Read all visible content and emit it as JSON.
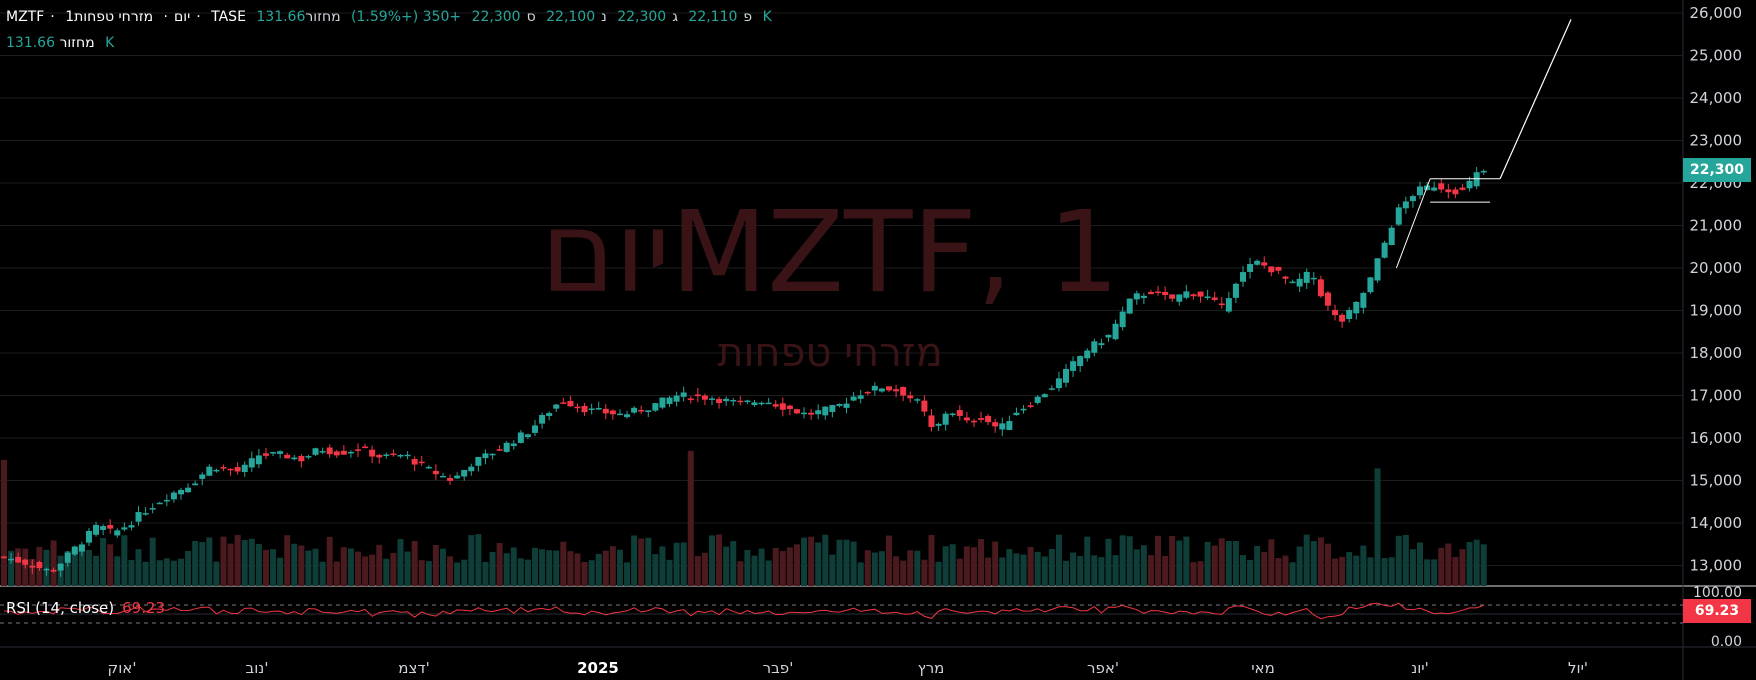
{
  "header": {
    "symbol": "MZTF",
    "interval": "1יום",
    "name": "מזרחי טפחות",
    "exchange": "TASE",
    "open_label": "פ",
    "open": "22,110",
    "high_label": "ג",
    "high": "22,300",
    "low_label": "נ",
    "low": "22,100",
    "close_label": "ס",
    "close": "22,300",
    "change": "+350 (+1.59%)",
    "volume_label": "מחזור",
    "volume": "131.66 K"
  },
  "volume_legend": {
    "label": "מחזור",
    "value": "131.66 K"
  },
  "watermark": {
    "title": "MZTF, 1יום",
    "subtitle": "מזרחי טפחות"
  },
  "rsi": {
    "label": "RSI (14, close)",
    "value": "69.23",
    "axis_top": "100.00",
    "axis_bottom": "0.00"
  },
  "price_axis": {
    "current_price_tag": "22,300"
  },
  "colors": {
    "up": "#26a69a",
    "down": "#f23645",
    "background": "#000000",
    "rsi_line": "#f23645",
    "watermark": "#3a1316"
  },
  "chart_data": {
    "type": "candlestick",
    "ylim": [
      12500,
      26000
    ],
    "y_ticks": [
      "13,000",
      "14,000",
      "15,000",
      "16,000",
      "17,000",
      "18,000",
      "19,000",
      "20,000",
      "21,000",
      "22,000",
      "23,000",
      "24,000",
      "25,000",
      "26,000"
    ],
    "x_tick_labels": [
      "אוק'",
      "נוב'",
      "דצמ'",
      "2025",
      "פבר'",
      "מרץ",
      "אפר'",
      "מאי",
      "יונ'",
      "יול'"
    ],
    "price_path": [
      [
        0,
        13200
      ],
      [
        10,
        13050
      ],
      [
        20,
        12850
      ],
      [
        30,
        13400
      ],
      [
        40,
        13950
      ],
      [
        46,
        13750
      ],
      [
        52,
        13950
      ],
      [
        60,
        14300
      ],
      [
        68,
        14600
      ],
      [
        80,
        14950
      ],
      [
        88,
        15350
      ],
      [
        100,
        15200
      ],
      [
        108,
        15600
      ],
      [
        118,
        15600
      ],
      [
        126,
        15500
      ],
      [
        134,
        15750
      ],
      [
        142,
        15650
      ],
      [
        150,
        15750
      ],
      [
        160,
        15550
      ],
      [
        170,
        15600
      ],
      [
        178,
        15300
      ],
      [
        190,
        15000
      ],
      [
        198,
        15400
      ],
      [
        210,
        15750
      ],
      [
        222,
        16150
      ],
      [
        236,
        16900
      ],
      [
        248,
        16650
      ],
      [
        262,
        16550
      ],
      [
        272,
        16700
      ],
      [
        285,
        17000
      ],
      [
        300,
        16950
      ],
      [
        312,
        16800
      ],
      [
        322,
        16900
      ],
      [
        332,
        16700
      ],
      [
        340,
        16550
      ],
      [
        352,
        16700
      ],
      [
        362,
        17050
      ],
      [
        372,
        17200
      ],
      [
        380,
        17100
      ],
      [
        388,
        16800
      ],
      [
        394,
        16100
      ],
      [
        400,
        16700
      ],
      [
        408,
        16350
      ],
      [
        414,
        16500
      ],
      [
        422,
        16200
      ],
      [
        428,
        16600
      ],
      [
        436,
        16850
      ],
      [
        446,
        17300
      ],
      [
        458,
        18050
      ],
      [
        468,
        18400
      ],
      [
        478,
        19300
      ],
      [
        486,
        19450
      ],
      [
        494,
        19250
      ],
      [
        502,
        19450
      ],
      [
        510,
        19300
      ],
      [
        516,
        19050
      ],
      [
        522,
        19700
      ],
      [
        530,
        20150
      ],
      [
        538,
        19950
      ],
      [
        546,
        19600
      ],
      [
        554,
        19900
      ],
      [
        560,
        19150
      ],
      [
        566,
        18700
      ],
      [
        572,
        19050
      ],
      [
        578,
        19600
      ],
      [
        584,
        20450
      ],
      [
        590,
        21300
      ],
      [
        598,
        21800
      ],
      [
        606,
        21950
      ],
      [
        612,
        21850
      ],
      [
        618,
        21800
      ],
      [
        624,
        22200
      ],
      [
        628,
        22300
      ]
    ],
    "rsi_range": [
      0,
      100
    ],
    "rsi_levels": [
      70,
      30
    ],
    "current_rsi": 69.23,
    "projection_line": [
      [
        628,
        22300
      ],
      [
        664,
        25850
      ]
    ],
    "consolidation_box": {
      "top": 22100,
      "bottom": 21550
    }
  }
}
